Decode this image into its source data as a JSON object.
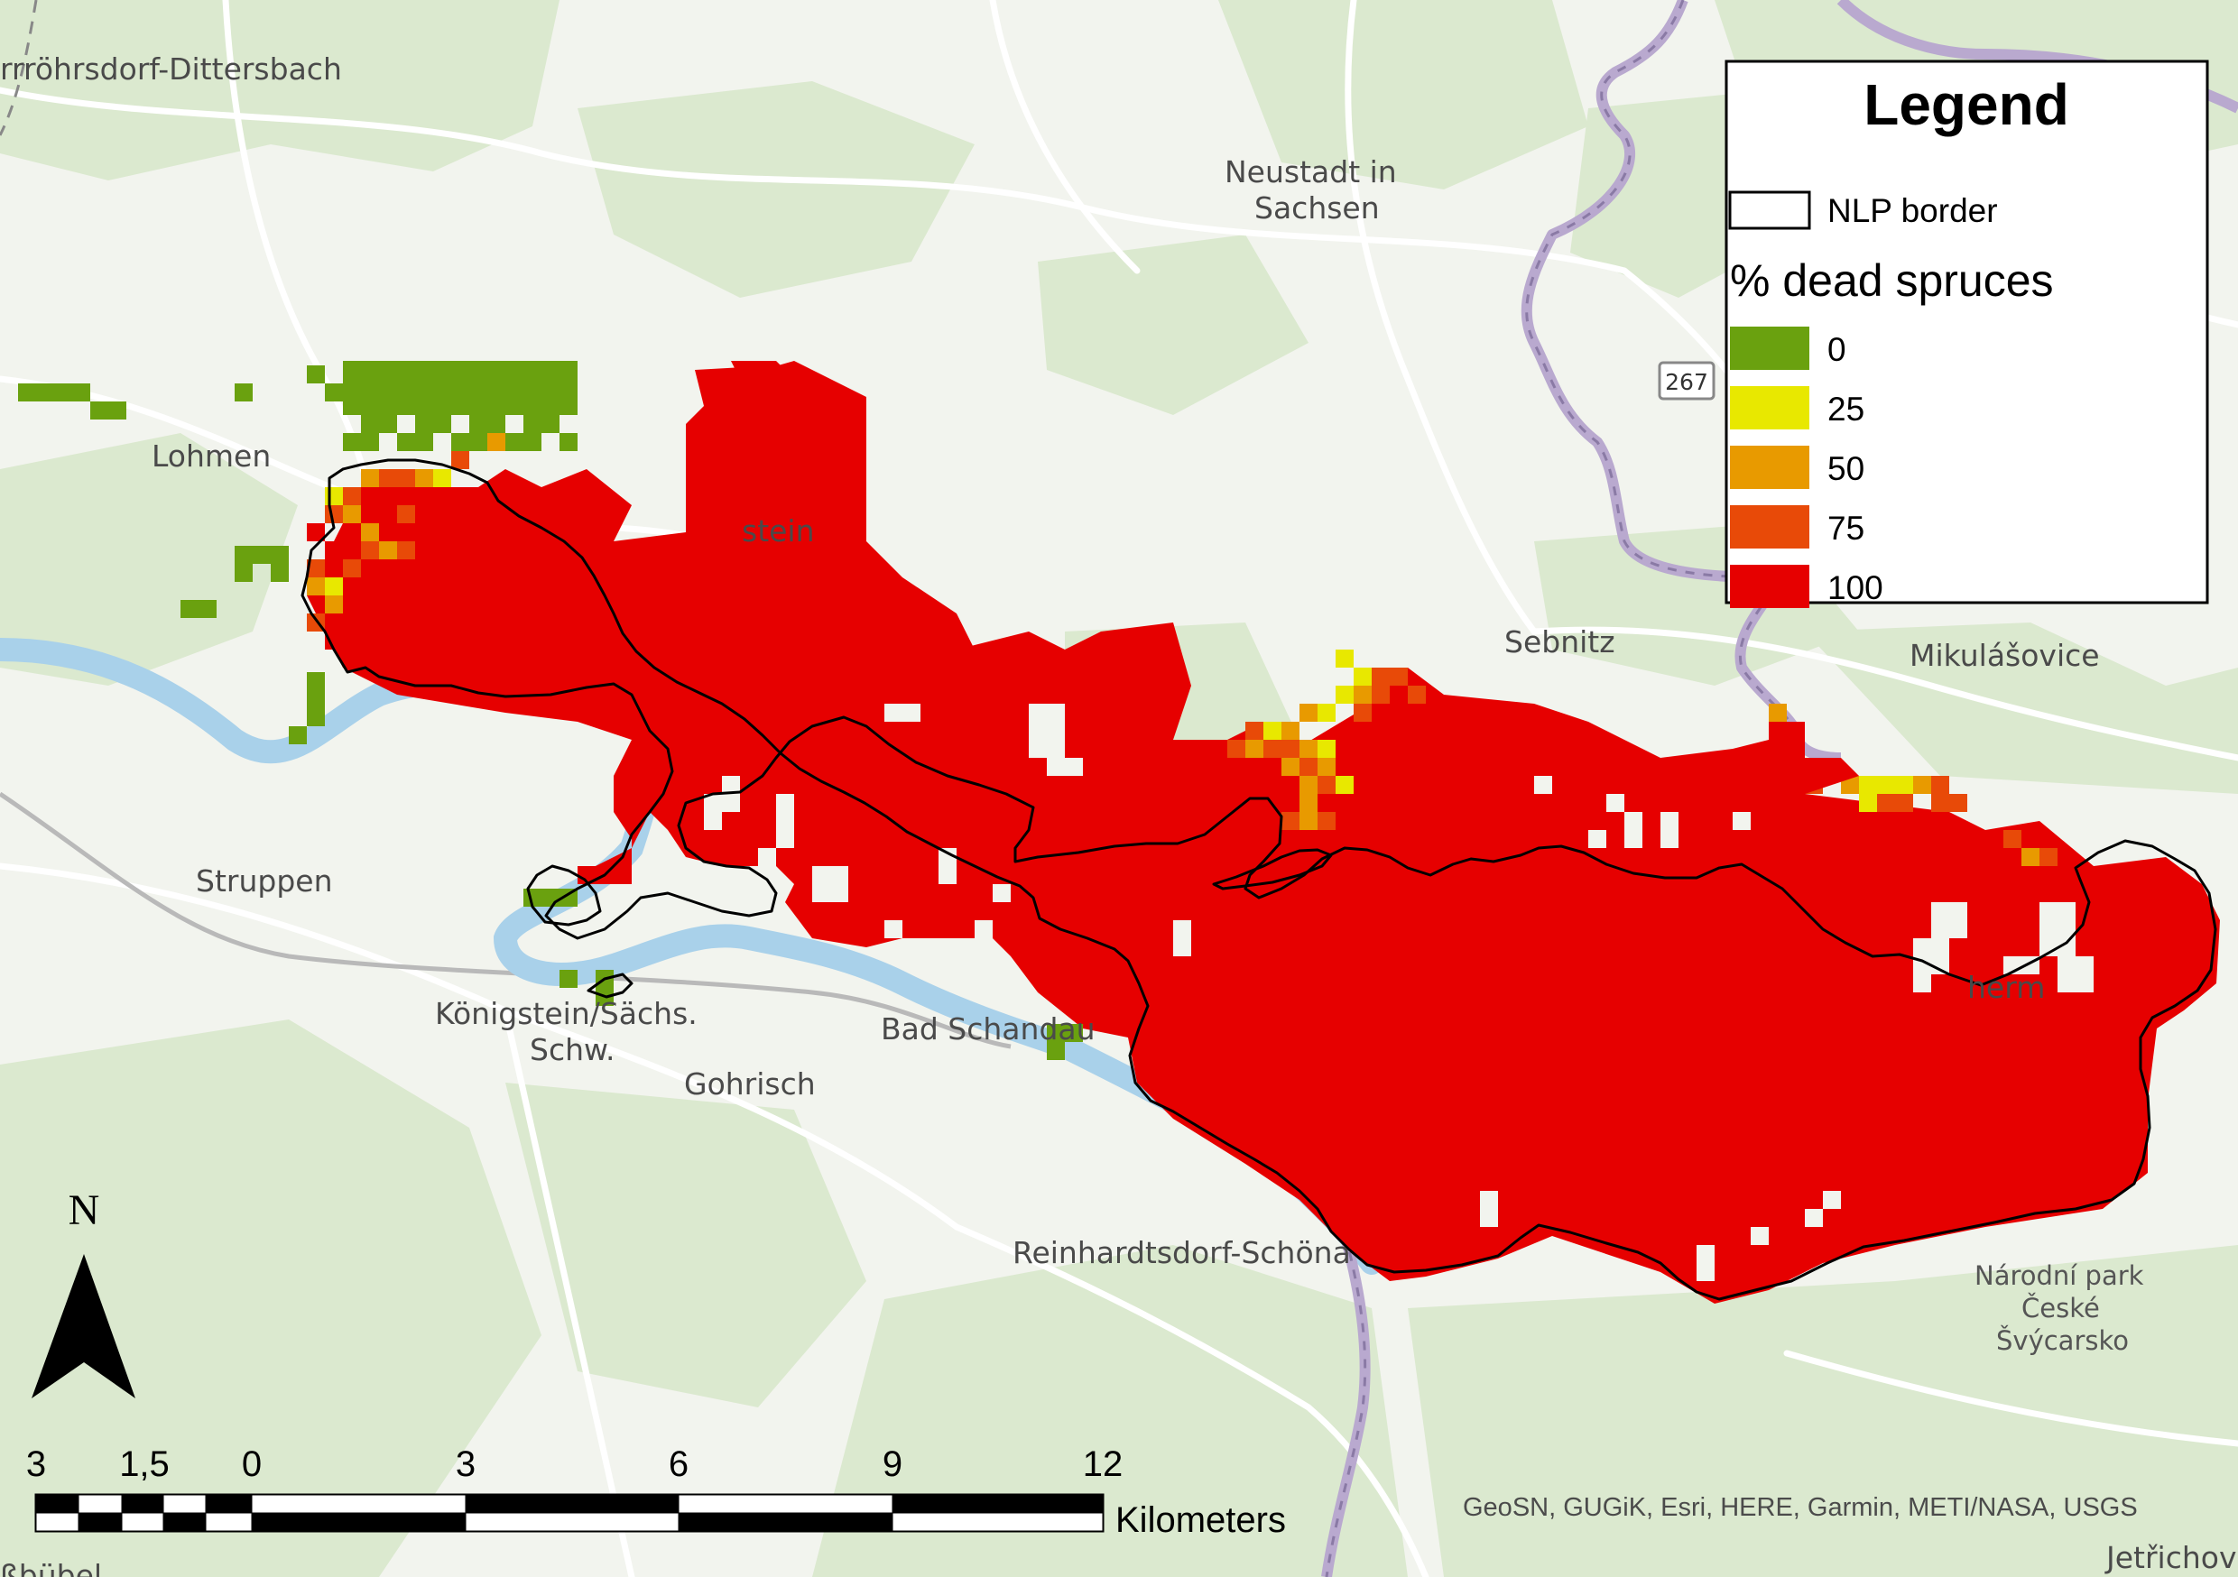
{
  "legend": {
    "title": "Legend",
    "border_label": "NLP border",
    "subtitle": "% dead spruces",
    "classes": [
      {
        "label": "0",
        "color": "#6aa10f"
      },
      {
        "label": "25",
        "color": "#e8e800"
      },
      {
        "label": "50",
        "color": "#e89a00"
      },
      {
        "label": "75",
        "color": "#e84a08"
      },
      {
        "label": "100",
        "color": "#e60000"
      }
    ]
  },
  "places": [
    {
      "id": "durrrohrsdorf",
      "text": "rrröhrsdorf-Dittersbach"
    },
    {
      "id": "lohmen",
      "text": "Lohmen"
    },
    {
      "id": "neustadt-1",
      "text": "Neustadt in"
    },
    {
      "id": "neustadt-2",
      "text": "Sachsen"
    },
    {
      "id": "stein",
      "text": "stein"
    },
    {
      "id": "sebnitz",
      "text": "Sebnitz"
    },
    {
      "id": "mikulasovice",
      "text": "Mikulášovice"
    },
    {
      "id": "struppen",
      "text": "Struppen"
    },
    {
      "id": "konigstein-1",
      "text": "Königstein/Sächs."
    },
    {
      "id": "konigstein-2",
      "text": "Schw."
    },
    {
      "id": "badschandau",
      "text": "Bad Schandau"
    },
    {
      "id": "gohrisch",
      "text": "Gohrisch"
    },
    {
      "id": "hinterhermsdorf",
      "text": "herm"
    },
    {
      "id": "reinhardtsdorf",
      "text": "Reinhardtsdorf-Schöna"
    },
    {
      "id": "narodni-1",
      "text": "Národní park"
    },
    {
      "id": "narodni-2",
      "text": "České"
    },
    {
      "id": "narodni-3",
      "text": "Švýcarsko"
    },
    {
      "id": "jetrichov",
      "text": "Jetřichov"
    },
    {
      "id": "bottom-left",
      "text": "ßbübel"
    }
  ],
  "road_shield": "267",
  "north_arrow": {
    "label": "N"
  },
  "scale_bar": {
    "ticks": [
      "3",
      "1,5",
      "0",
      "3",
      "6",
      "9",
      "12"
    ],
    "unit": "Kilometers"
  },
  "attribution": "GeoSN, GUGiK, Esri, HERE, Garmin, METI/NASA, USGS",
  "colors": {
    "base_land": "#f2f4ee",
    "forest": "#d9e8cc",
    "road": "#ffffff",
    "river": "#a9d1ea",
    "boundary": "#b8a8cc"
  }
}
